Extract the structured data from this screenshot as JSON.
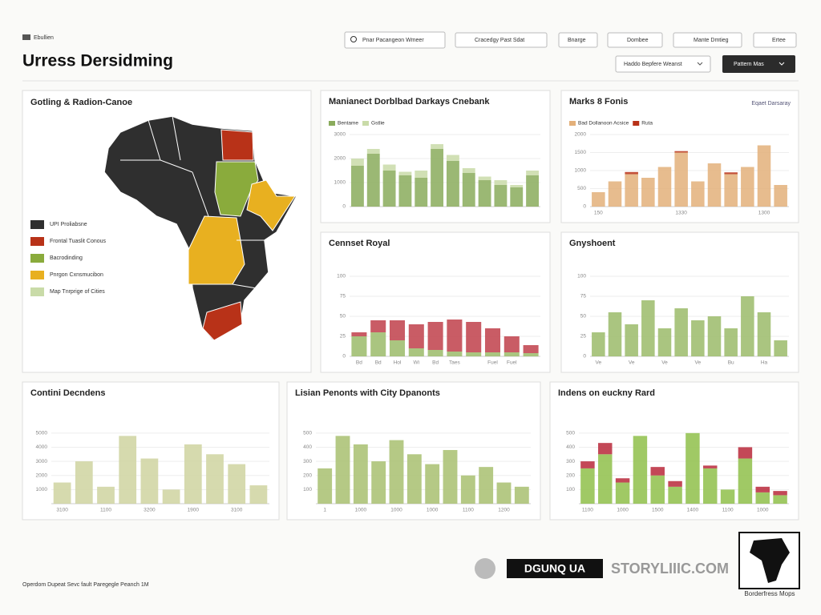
{
  "header": {
    "brand": "Ebullien",
    "title": "Urress Dersidming",
    "search": "Pnar Pacangeon Wmeer",
    "buttons": [
      "Cracedgy Past Sdat",
      "Bnarge",
      "Dombee",
      "Mante Dmtieg",
      "Ertee"
    ],
    "dropdown": "Haddo Bepfere Weanst",
    "primary_button": "Pattern Mas"
  },
  "map": {
    "title": "Gotling & Radion-Canoe",
    "legend": [
      {
        "label": "UPI Proliabsne",
        "color": "#2f2f2f"
      },
      {
        "label": "Frontal Tuaslit Conous",
        "color": "#b83218"
      },
      {
        "label": "Bacrodinding",
        "color": "#8aab3c"
      },
      {
        "label": "Pnrgon Cxnsmucibon",
        "color": "#e8b020"
      },
      {
        "label": "Map Tnrprige of Cities",
        "color": "#c9dba8"
      }
    ]
  },
  "chart_data": [
    {
      "type": "bar",
      "title": "Manianect Dorblbad Darkays Cnebank",
      "stacked": true,
      "grid": true,
      "categories": [
        null,
        null,
        null,
        null,
        null,
        null,
        null,
        null,
        null,
        null,
        null,
        null
      ],
      "series": [
        {
          "name": "Bentame",
          "color": "#8aab5c",
          "values": [
            1700,
            2200,
            1500,
            1300,
            1200,
            2400,
            1900,
            1400,
            1100,
            900,
            800,
            1300
          ]
        },
        {
          "name": "Gstlie",
          "color": "#c9dba8",
          "values": [
            300,
            200,
            250,
            150,
            300,
            200,
            250,
            200,
            150,
            200,
            100,
            200
          ]
        }
      ],
      "ylim": [
        0,
        3000
      ],
      "yticks": [
        0,
        1000,
        2000,
        3000
      ]
    },
    {
      "type": "bar",
      "title": "Marks 8 Fonis",
      "link": "Eqaet Darsaray",
      "stacked": true,
      "grid": true,
      "categories": [
        "150",
        null,
        null,
        null,
        null,
        "1330",
        null,
        null,
        null,
        null,
        "1300",
        null
      ],
      "series": [
        {
          "name": "Bad Dollanoon Acsice",
          "color": "#e3b07a",
          "values": [
            400,
            700,
            900,
            800,
            1100,
            1500,
            700,
            1200,
            900,
            1100,
            1700,
            600
          ]
        },
        {
          "name": "Ruta",
          "color": "#b83218",
          "values": [
            0,
            0,
            60,
            0,
            0,
            40,
            0,
            0,
            50,
            0,
            0,
            0
          ]
        }
      ],
      "ylim": [
        0,
        2000
      ],
      "yticks": [
        0,
        500,
        1000,
        1500,
        2000
      ]
    },
    {
      "type": "bar",
      "title": "Cennset Royal",
      "stacked": true,
      "grid": true,
      "categories": [
        "Bd",
        "Bd",
        "Hol",
        "Wi",
        "Bd",
        "Taes",
        null,
        "Fuel",
        "Fuel",
        null
      ],
      "series": [
        {
          "color": "#9bbb6a",
          "values": [
            25,
            30,
            20,
            10,
            8,
            6,
            5,
            5,
            5,
            4
          ]
        },
        {
          "color": "#c0404a",
          "values": [
            5,
            15,
            25,
            30,
            35,
            40,
            38,
            30,
            20,
            10
          ]
        }
      ],
      "ylim": [
        0,
        100
      ],
      "yticks": [
        0,
        25,
        50,
        75,
        100
      ]
    },
    {
      "type": "bar",
      "title": "Gnyshoent",
      "stacked": true,
      "grid": true,
      "categories": [
        "Ve",
        null,
        "Ve",
        null,
        "Ve",
        null,
        "Ve",
        null,
        "Bu",
        null,
        "Ha",
        null
      ],
      "series": [
        {
          "color": "#9bbb6a",
          "values": [
            30,
            55,
            40,
            70,
            35,
            60,
            45,
            50,
            35,
            75,
            55,
            20
          ]
        }
      ],
      "ylim": [
        0,
        100
      ],
      "yticks": [
        0,
        25,
        50,
        75,
        100
      ]
    },
    {
      "type": "bar",
      "title": "Contini Decndens",
      "stacked": true,
      "grid": true,
      "categories": [
        "3100",
        null,
        "1100",
        null,
        "3200",
        null,
        "1900",
        null,
        "3100",
        null
      ],
      "series": [
        {
          "color": "#cfd3a0",
          "values": [
            1500,
            3000,
            1200,
            4800,
            3200,
            1000,
            4200,
            3500,
            2800,
            1300
          ]
        }
      ],
      "ylim": [
        0,
        5500
      ],
      "yticks": [
        1000,
        2000,
        3000,
        4000,
        5000
      ]
    },
    {
      "type": "bar",
      "title": "Lisian Penonts with City Dpanonts",
      "stacked": true,
      "grid": true,
      "categories": [
        "1",
        null,
        "1000",
        null,
        "1000",
        null,
        "1000",
        null,
        "1100",
        null,
        "1200",
        null
      ],
      "series": [
        {
          "color": "#a8c070",
          "values": [
            250,
            480,
            420,
            300,
            450,
            350,
            280,
            380,
            200,
            260,
            150,
            120
          ]
        }
      ],
      "ylim": [
        0,
        550
      ],
      "yticks": [
        100,
        200,
        300,
        400,
        500
      ]
    },
    {
      "type": "bar",
      "title": "Indens on euckny Rard",
      "stacked": true,
      "grid": true,
      "categories": [
        "1100",
        null,
        "1000",
        null,
        "1500",
        null,
        "1400",
        null,
        "1100",
        null,
        "1000",
        null
      ],
      "series": [
        {
          "color": "#8fbf4a",
          "values": [
            250,
            350,
            150,
            480,
            200,
            120,
            500,
            250,
            100,
            320,
            80,
            60
          ]
        },
        {
          "color": "#b8283a",
          "values": [
            50,
            80,
            30,
            0,
            60,
            40,
            0,
            20,
            0,
            80,
            40,
            30
          ]
        }
      ],
      "ylim": [
        0,
        550
      ],
      "yticks": [
        100,
        200,
        300,
        400,
        500
      ]
    }
  ],
  "footer": {
    "note": "Operdom Dupeat Sevc fault Paregegle Peanch 1M",
    "logo_text": "DGUNQ UA",
    "site": "STORYLIIIC.COM",
    "badge": "Borderfress Mops"
  }
}
